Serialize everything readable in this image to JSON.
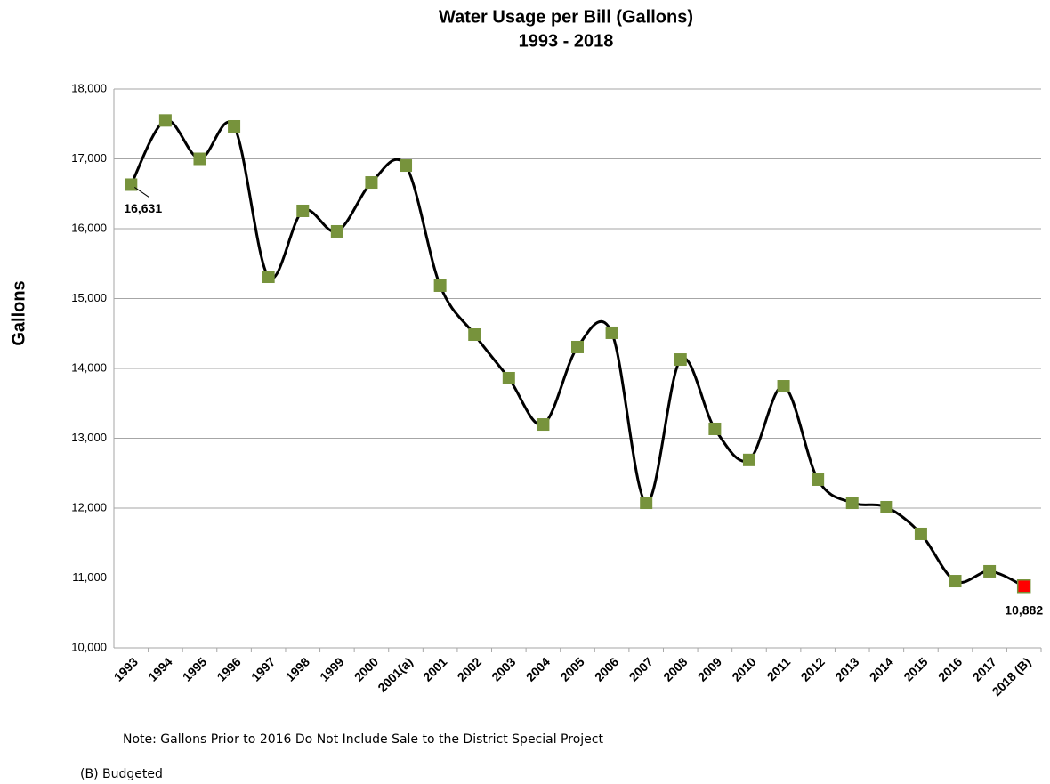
{
  "chart_data": {
    "type": "line",
    "title": "Water Usage per Bill (Gallons)",
    "subtitle": "1993 - 2018",
    "y_label": "Gallons",
    "notes": [
      "Note: Gallons Prior to 2016 Do Not Include Sale to the District Special Project",
      "(B) Budgeted"
    ],
    "categories": [
      "1993",
      "1994",
      "1995",
      "1996",
      "1997",
      "1998",
      "1999",
      "2000",
      "2001(a)",
      "2001",
      "2002",
      "2003",
      "2004",
      "2005",
      "2006",
      "2007",
      "2008",
      "2009",
      "2010",
      "2011",
      "2012",
      "2013",
      "2014",
      "2015",
      "2016",
      "2017",
      "2018 (B)"
    ],
    "series": [
      {
        "name": "Gallons",
        "color": "#000000",
        "marker_colors": [
          "#77933c",
          "#77933c",
          "#77933c",
          "#77933c",
          "#77933c",
          "#77933c",
          "#77933c",
          "#77933c",
          "#77933c",
          "#77933c",
          "#77933c",
          "#77933c",
          "#77933c",
          "#77933c",
          "#77933c",
          "#77933c",
          "#77933c",
          "#77933c",
          "#77933c",
          "#77933c",
          "#77933c",
          "#77933c",
          "#77933c",
          "#77933c",
          "#77933c",
          "#77933c",
          "#ff0000"
        ],
        "values": [
          16631,
          17550,
          17000,
          17465,
          15312,
          16255,
          15962,
          16662,
          16904,
          15185,
          14484,
          13860,
          13197,
          14306,
          14510,
          12076,
          14127,
          13134,
          12690,
          13745,
          12408,
          12076,
          12013,
          11631,
          10955,
          11096,
          10882
        ],
        "value_labels": [
          "16,631",
          null,
          null,
          null,
          null,
          null,
          null,
          null,
          null,
          null,
          null,
          null,
          null,
          null,
          null,
          null,
          null,
          null,
          null,
          null,
          null,
          null,
          null,
          null,
          null,
          null,
          "10,882"
        ]
      }
    ],
    "ylim": [
      10000,
      18000
    ],
    "yticks": [
      {
        "value": 10000,
        "label": "10,000"
      },
      {
        "value": 11000,
        "label": "11,000"
      },
      {
        "value": 12000,
        "label": "12,000"
      },
      {
        "value": 13000,
        "label": "13,000"
      },
      {
        "value": 14000,
        "label": "14,000"
      },
      {
        "value": 15000,
        "label": "15,000"
      },
      {
        "value": 16000,
        "label": "16,000"
      },
      {
        "value": 17000,
        "label": "17,000"
      },
      {
        "value": 18000,
        "label": "18,000"
      }
    ],
    "grid": true
  }
}
